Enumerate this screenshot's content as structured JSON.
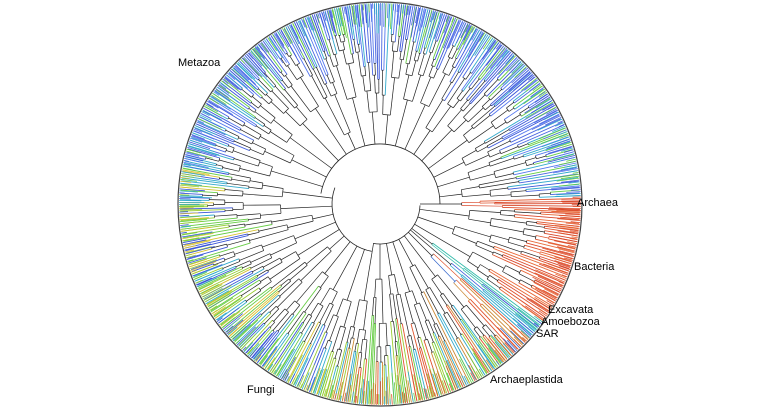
{
  "figure": {
    "type": "circular phylogenetic tree",
    "ring_color": "#444444",
    "branch_color": "#222222"
  },
  "clades": [
    {
      "key": "metazoa",
      "label": "Metazoa",
      "color": "#3a55d8"
    },
    {
      "key": "fungi",
      "label": "Fungi",
      "color": "#66cc44"
    },
    {
      "key": "archaeplastida",
      "label": "Archaeplastida",
      "color": "#cc8833"
    },
    {
      "key": "sar",
      "label": "SAR",
      "color": "#3366cc"
    },
    {
      "key": "amoebozoa",
      "label": "Amoebozoa",
      "color": "#33aacc"
    },
    {
      "key": "excavata",
      "label": "Excavata",
      "color": "#33bbaa"
    },
    {
      "key": "bacteria",
      "label": "Bacteria",
      "color": "#e0552f"
    },
    {
      "key": "archaea",
      "label": "Archaea",
      "color": "#d9482b"
    }
  ],
  "labels": {
    "metazoa": "Metazoa",
    "fungi": "Fungi",
    "archaeplastida": "Archaeplastida",
    "sar": "SAR",
    "amoebozoa": "Amoebozoa",
    "excavata": "Excavata",
    "bacteria": "Bacteria",
    "archaea": "Archaea"
  }
}
